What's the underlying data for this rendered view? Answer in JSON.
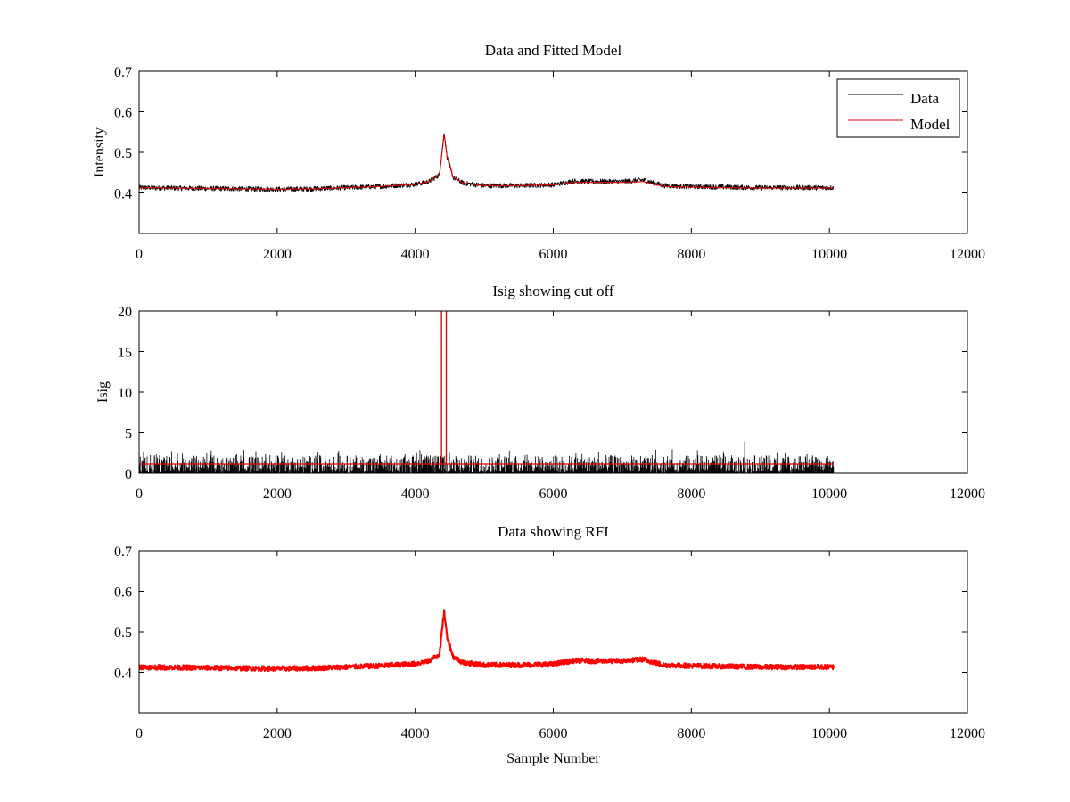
{
  "chart_data": [
    {
      "type": "line",
      "title": "Data and Fitted Model",
      "xlabel": "",
      "ylabel": "Intensity",
      "xlim": [
        0,
        12000
      ],
      "ylim": [
        0.3,
        0.7
      ],
      "xticks": [
        0,
        2000,
        4000,
        6000,
        8000,
        10000,
        12000
      ],
      "yticks": [
        0.4,
        0.5,
        0.6,
        0.7
      ],
      "ytick_labels": [
        "0.4",
        "0.5",
        "0.6",
        "0.7"
      ],
      "legend": {
        "placement": "top-right",
        "entries": [
          "Data",
          "Model"
        ]
      },
      "series": [
        {
          "name": "Data",
          "color": "#000000",
          "noise": 0.006,
          "x": [
            0,
            1000,
            2000,
            2500,
            3000,
            3500,
            4000,
            4200,
            4350,
            4420,
            4460,
            4550,
            4700,
            5000,
            5500,
            6000,
            6300,
            6600,
            7000,
            7300,
            7600,
            8000,
            9000,
            10060
          ],
          "y": [
            0.413,
            0.411,
            0.409,
            0.41,
            0.413,
            0.416,
            0.421,
            0.428,
            0.445,
            0.55,
            0.49,
            0.438,
            0.424,
            0.418,
            0.418,
            0.42,
            0.429,
            0.428,
            0.428,
            0.432,
            0.418,
            0.416,
            0.413,
            0.413
          ]
        },
        {
          "name": "Model",
          "color": "#dd0000",
          "noise": 0.0,
          "x": [
            0,
            1000,
            2000,
            2500,
            3000,
            3500,
            4000,
            4200,
            4350,
            4420,
            4460,
            4550,
            4700,
            5000,
            5500,
            6000,
            6300,
            6600,
            7000,
            7300,
            7600,
            8000,
            9000,
            10060
          ],
          "y": [
            0.413,
            0.411,
            0.409,
            0.41,
            0.413,
            0.416,
            0.421,
            0.428,
            0.445,
            0.545,
            0.49,
            0.438,
            0.424,
            0.418,
            0.418,
            0.42,
            0.426,
            0.426,
            0.426,
            0.428,
            0.416,
            0.414,
            0.412,
            0.412
          ]
        }
      ]
    },
    {
      "type": "line",
      "title": "Isig showing cut off",
      "xlabel": "",
      "ylabel": "Isig",
      "xlim": [
        0,
        12000
      ],
      "ylim": [
        0,
        20
      ],
      "xticks": [
        0,
        2000,
        4000,
        6000,
        8000,
        10000,
        12000
      ],
      "yticks": [
        0,
        5,
        10,
        15,
        20
      ],
      "ytick_labels": [
        "0",
        "5",
        "10",
        "15",
        "20"
      ],
      "series": [
        {
          "name": "Isig",
          "color": "#000000",
          "x_range": [
            0,
            10060
          ],
          "typical_max": 2.2,
          "peak_max": 3.9
        },
        {
          "name": "Cut off",
          "color": "#dd0000",
          "level": 1.1,
          "x_range": [
            0,
            10060
          ],
          "spikes_x": [
            4380,
            4450
          ],
          "spike_top": 20
        }
      ]
    },
    {
      "type": "line",
      "title": "Data showing RFI",
      "xlabel": "Sample Number",
      "ylabel": "",
      "xlim": [
        0,
        12000
      ],
      "ylim": [
        0.3,
        0.7
      ],
      "xticks": [
        0,
        2000,
        4000,
        6000,
        8000,
        10000,
        12000
      ],
      "yticks": [
        0.4,
        0.5,
        0.6,
        0.7
      ],
      "ytick_labels": [
        "0.4",
        "0.5",
        "0.6",
        "0.7"
      ],
      "series": [
        {
          "name": "Data",
          "color": "#ff0000",
          "noise": 0.006,
          "x": [
            0,
            1000,
            2000,
            2500,
            3000,
            3500,
            4000,
            4200,
            4350,
            4420,
            4460,
            4550,
            4700,
            5000,
            5500,
            6000,
            6300,
            6600,
            7000,
            7300,
            7600,
            8000,
            9000,
            10060
          ],
          "y": [
            0.413,
            0.411,
            0.409,
            0.41,
            0.413,
            0.416,
            0.421,
            0.428,
            0.445,
            0.55,
            0.49,
            0.438,
            0.424,
            0.418,
            0.418,
            0.42,
            0.429,
            0.428,
            0.428,
            0.432,
            0.418,
            0.416,
            0.413,
            0.413
          ]
        }
      ]
    }
  ]
}
